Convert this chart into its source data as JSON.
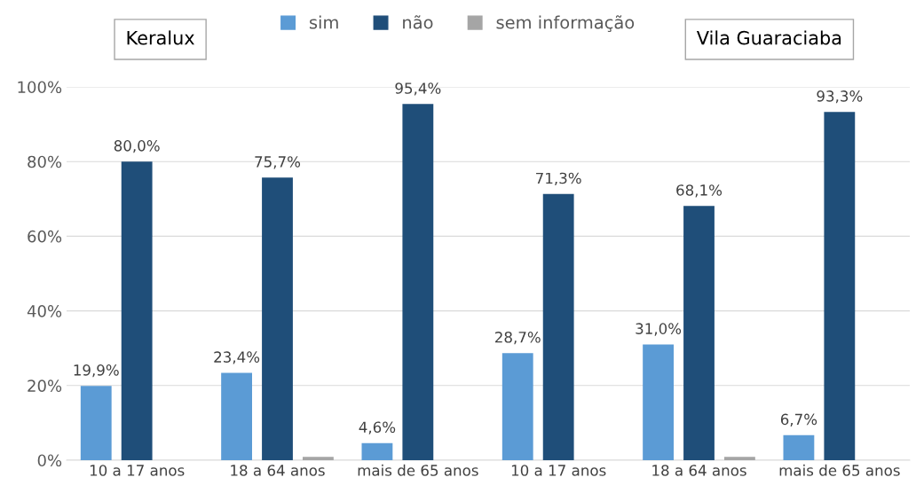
{
  "chart_data": {
    "type": "bar",
    "categories": [
      "10 a 17 anos",
      "18 a 64 anos",
      "mais de 65 anos",
      "10 a 17 anos",
      "18 a 64 anos",
      "mais de 65 anos"
    ],
    "series": [
      {
        "name": "sim",
        "color": "#5b9bd5",
        "values": [
          19.9,
          23.4,
          4.6,
          28.7,
          31.0,
          6.7
        ],
        "value_labels": [
          "19,9%",
          "23,4%",
          "4,6%",
          "28,7%",
          "31,0%",
          "6,7%"
        ]
      },
      {
        "name": "não",
        "color": "#1f4e79",
        "values": [
          80.0,
          75.7,
          95.4,
          71.3,
          68.1,
          93.3
        ],
        "value_labels": [
          "80,0%",
          "75,7%",
          "95,4%",
          "71,3%",
          "68,1%",
          "93,3%"
        ]
      },
      {
        "name": "sem informação",
        "color": "#a5a5a5",
        "values": [
          null,
          0.9,
          null,
          null,
          0.9,
          null
        ],
        "value_labels": [
          null,
          null,
          null,
          null,
          null,
          null
        ]
      }
    ],
    "ylim": [
      0,
      100
    ],
    "yticks": [
      {
        "value": 0,
        "label": "0%"
      },
      {
        "value": 20,
        "label": "20%"
      },
      {
        "value": 40,
        "label": "40%"
      },
      {
        "value": 60,
        "label": "60%"
      },
      {
        "value": 80,
        "label": "80%"
      },
      {
        "value": 100,
        "label": "100%"
      }
    ],
    "grid": "y",
    "legend": "top",
    "annotations": [
      "Keralux",
      "Vila Guaraciaba"
    ]
  }
}
